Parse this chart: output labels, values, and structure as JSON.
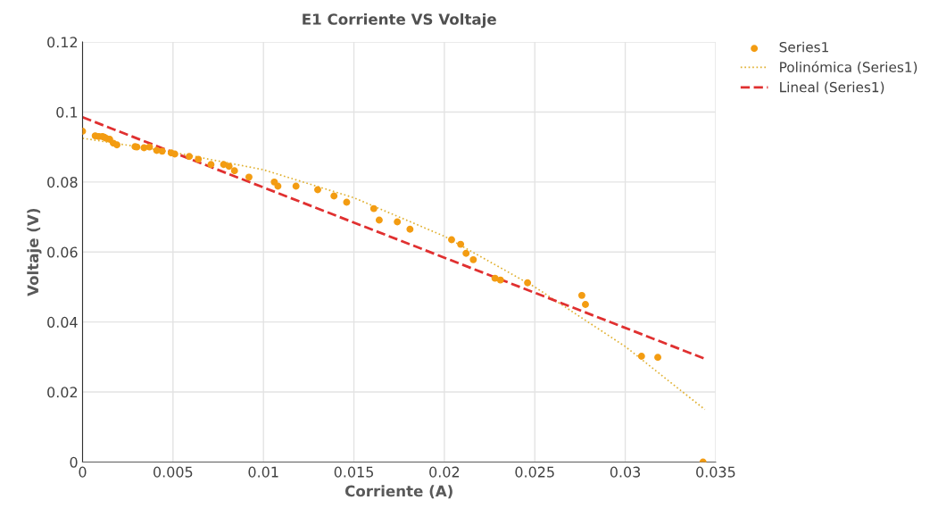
{
  "chart_data": {
    "type": "scatter",
    "title": "E1 Corriente VS Voltaje",
    "xlabel": "Corriente (A)",
    "ylabel": "Voltaje (V)",
    "xlim": [
      0,
      0.035
    ],
    "xticks": [
      0,
      0.005,
      0.01,
      0.015,
      0.02,
      0.025,
      0.03,
      0.035
    ],
    "ylim": [
      0,
      0.12
    ],
    "yticks": [
      0,
      0.02,
      0.04,
      0.06,
      0.08,
      0.1,
      0.12
    ],
    "grid": true,
    "legend": "top right",
    "series": [
      {
        "name": "Series1",
        "marker": "circle",
        "color": "#f39c12",
        "x": [
          0,
          0.0007,
          0.0009,
          0.0011,
          0.0012,
          0.0013,
          0.0015,
          0.0017,
          0.0019,
          0.0029,
          0.003,
          0.0034,
          0.0037,
          0.0041,
          0.0044,
          0.0049,
          0.0051,
          0.0059,
          0.0064,
          0.0071,
          0.0078,
          0.0081,
          0.0084,
          0.0092,
          0.0106,
          0.0108,
          0.0118,
          0.013,
          0.0139,
          0.0146,
          0.0161,
          0.0164,
          0.0174,
          0.0181,
          0.0204,
          0.0209,
          0.0212,
          0.0216,
          0.0228,
          0.0231,
          0.0246,
          0.0276,
          0.0278,
          0.0309,
          0.0318,
          0.0343
        ],
        "values": [
          0.0945,
          0.0932,
          0.093,
          0.093,
          0.0928,
          0.0925,
          0.0922,
          0.0911,
          0.0906,
          0.0901,
          0.09,
          0.0898,
          0.09,
          0.089,
          0.0888,
          0.0883,
          0.088,
          0.0873,
          0.0865,
          0.085,
          0.085,
          0.0845,
          0.0832,
          0.0814,
          0.08,
          0.0788,
          0.0788,
          0.0778,
          0.076,
          0.0742,
          0.0724,
          0.0691,
          0.0686,
          0.0665,
          0.0635,
          0.0622,
          0.0596,
          0.0578,
          0.0525,
          0.052,
          0.0512,
          0.0476,
          0.045,
          0.0302,
          0.0299,
          0
        ]
      },
      {
        "name": "Polinómica (Series1)",
        "type": "line",
        "marker": "none",
        "line_style": "dotted",
        "color": "#e0b030",
        "x": [
          0,
          0.005,
          0.01,
          0.015,
          0.02,
          0.025,
          0.03,
          0.0344
        ],
        "values": [
          0.0925,
          0.0885,
          0.0835,
          0.0755,
          0.0645,
          0.05,
          0.033,
          0.015
        ]
      },
      {
        "name": "Lineal (Series1)",
        "type": "line",
        "marker": "none",
        "line_style": "dashed",
        "color": "#e03030",
        "x": [
          0,
          0.0344
        ],
        "values": [
          0.0985,
          0.0295
        ]
      }
    ]
  }
}
